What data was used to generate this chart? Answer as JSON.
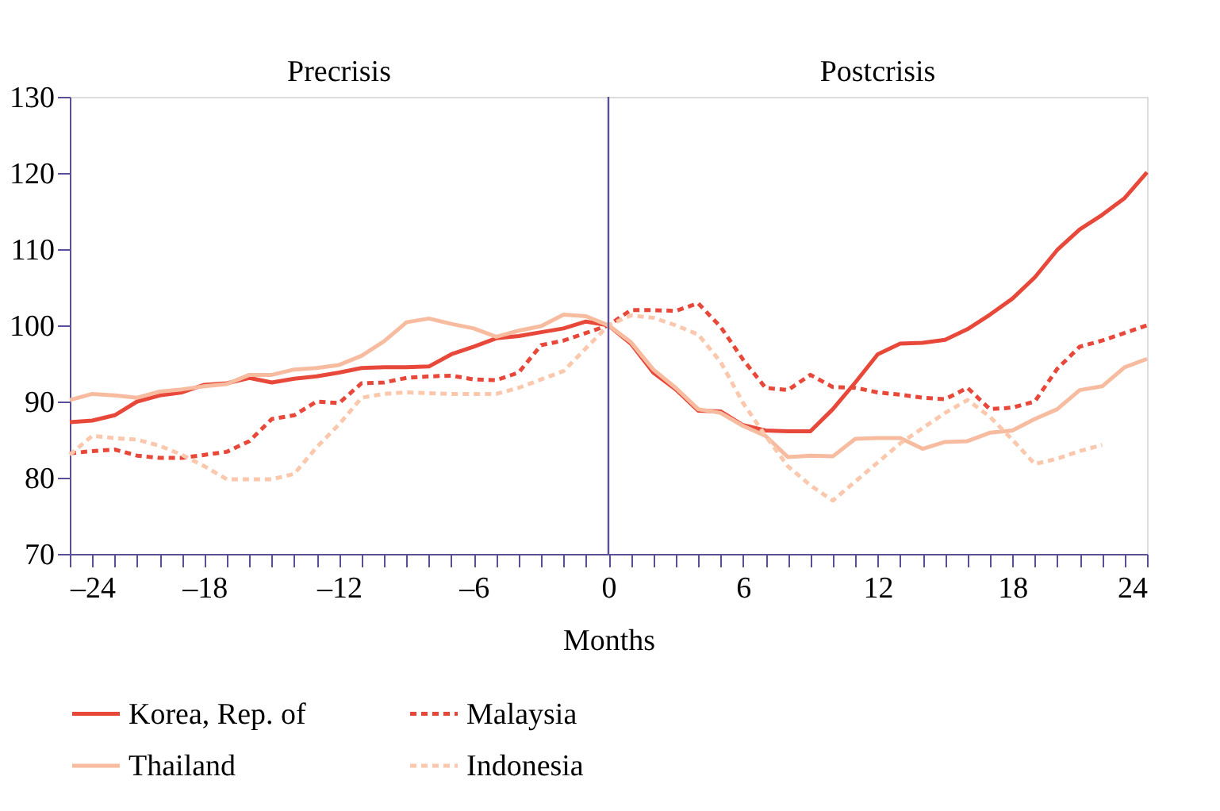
{
  "chart_data": {
    "type": "line",
    "xlabel": "Months",
    "annotations": [
      "Precrisis",
      "Postcrisis"
    ],
    "x": [
      -24,
      -23,
      -22,
      -21,
      -20,
      -19,
      -18,
      -17,
      -16,
      -15,
      -14,
      -13,
      -12,
      -11,
      -10,
      -9,
      -8,
      -7,
      -6,
      -5,
      -4,
      -3,
      -2,
      -1,
      0,
      1,
      2,
      3,
      4,
      5,
      6,
      7,
      8,
      9,
      10,
      11,
      12,
      13,
      14,
      15,
      16,
      17,
      18,
      19,
      20,
      21,
      22,
      23,
      24
    ],
    "xlim": [
      -24,
      24
    ],
    "xticks": [
      {
        "value": -24,
        "label": "–24"
      },
      {
        "value": -23,
        "label": null
      },
      {
        "value": -22,
        "label": null
      },
      {
        "value": -21,
        "label": null
      },
      {
        "value": -20,
        "label": null
      },
      {
        "value": -19,
        "label": null
      },
      {
        "value": -18,
        "label": "–18"
      },
      {
        "value": -17,
        "label": null
      },
      {
        "value": -16,
        "label": null
      },
      {
        "value": -15,
        "label": null
      },
      {
        "value": -14,
        "label": null
      },
      {
        "value": -13,
        "label": null
      },
      {
        "value": -12,
        "label": "–12"
      },
      {
        "value": -11,
        "label": null
      },
      {
        "value": -10,
        "label": null
      },
      {
        "value": -9,
        "label": null
      },
      {
        "value": -8,
        "label": null
      },
      {
        "value": -7,
        "label": null
      },
      {
        "value": -6,
        "label": "–6"
      },
      {
        "value": -5,
        "label": null
      },
      {
        "value": -4,
        "label": null
      },
      {
        "value": -3,
        "label": null
      },
      {
        "value": -2,
        "label": null
      },
      {
        "value": -1,
        "label": null
      },
      0,
      {
        "value": 1,
        "label": null
      },
      {
        "value": 2,
        "label": null
      },
      {
        "value": 3,
        "label": null
      },
      {
        "value": 4,
        "label": null
      },
      {
        "value": 5,
        "label": null
      },
      6,
      {
        "value": 7,
        "label": null
      },
      {
        "value": 8,
        "label": null
      },
      {
        "value": 9,
        "label": null
      },
      {
        "value": 10,
        "label": null
      },
      {
        "value": 11,
        "label": null
      },
      12,
      {
        "value": 13,
        "label": null
      },
      {
        "value": 14,
        "label": null
      },
      {
        "value": 15,
        "label": null
      },
      {
        "value": 16,
        "label": null
      },
      {
        "value": 17,
        "label": null
      },
      18,
      {
        "value": 19,
        "label": null
      },
      {
        "value": 20,
        "label": null
      },
      {
        "value": 21,
        "label": null
      },
      {
        "value": 22,
        "label": null
      },
      {
        "value": 23,
        "label": null
      },
      24
    ],
    "ylim": [
      70,
      130
    ],
    "yticks": [
      70,
      80,
      90,
      100,
      110,
      120,
      130
    ],
    "grid": false,
    "legend": "bottom",
    "ref_lines": [
      {
        "axis": "x",
        "value": 0,
        "color": "#5b4f96"
      }
    ],
    "series": [
      {
        "name": "Korea, Rep. of",
        "color": "#e8483a",
        "line_style": "solid",
        "values": [
          87.3,
          87.5,
          88.2,
          90,
          90.8,
          91.2,
          92.2,
          92.4,
          93.1,
          92.5,
          93,
          93.3,
          93.8,
          94.4,
          94.5,
          94.5,
          94.6,
          96.2,
          97.2,
          98.3,
          98.6,
          99.1,
          99.6,
          100.5,
          100,
          97.6,
          93.8,
          91.6,
          88.8,
          88.7,
          86.9,
          86.2,
          86.1,
          86.1,
          89,
          92.5,
          96.2,
          97.6,
          97.7,
          98.1,
          99.5,
          101.4,
          103.5,
          106.3,
          109.9,
          112.6,
          114.5,
          116.7,
          120.1
        ]
      },
      {
        "name": "Malaysia",
        "color": "#e8483a",
        "line_style": "dashed",
        "values": [
          83.2,
          83.5,
          83.7,
          82.9,
          82.6,
          82.6,
          83,
          83.4,
          84.8,
          87.7,
          88.2,
          90,
          89.8,
          92.4,
          92.5,
          93.1,
          93.3,
          93.4,
          92.9,
          92.8,
          93.8,
          97.4,
          98,
          99,
          100,
          102,
          102,
          101.9,
          102.9,
          99.8,
          95.5,
          91.8,
          91.5,
          93.5,
          91.9,
          91.8,
          91.2,
          90.9,
          90.5,
          90.3,
          91.8,
          89,
          89.2,
          90,
          94.3,
          97.2,
          98,
          99,
          100
        ]
      },
      {
        "name": "Thailand",
        "color": "#f7bca0",
        "line_style": "solid",
        "values": [
          90.2,
          91,
          90.8,
          90.5,
          91.3,
          91.6,
          92,
          92.3,
          93.5,
          93.5,
          94.2,
          94.4,
          94.8,
          96,
          97.9,
          100.4,
          100.9,
          100.2,
          99.6,
          98.5,
          99.3,
          99.9,
          101.4,
          101.2,
          100,
          97.8,
          94.2,
          91.8,
          89,
          88.5,
          86.8,
          85.5,
          82.7,
          82.9,
          82.8,
          85.1,
          85.2,
          85.2,
          83.8,
          84.7,
          84.8,
          85.9,
          86.2,
          87.7,
          89,
          91.5,
          92,
          94.5,
          95.6
        ]
      },
      {
        "name": "Indonesia",
        "color": "#fbc8ae",
        "line_style": "dashed",
        "values": [
          83,
          85.5,
          85.2,
          85,
          84.2,
          83,
          81.5,
          79.8,
          79.8,
          79.8,
          80.5,
          84,
          87,
          90.5,
          91,
          91.2,
          91.1,
          91,
          91,
          91,
          91.8,
          92.9,
          94,
          97,
          100,
          101.3,
          101,
          100,
          98.8,
          95.2,
          89.8,
          85.5,
          81.5,
          79,
          77,
          79.5,
          82,
          84.5,
          86.5,
          88.5,
          90.2,
          88,
          85,
          81.8,
          82.5,
          83.5,
          84.3,
          null,
          null
        ]
      }
    ]
  }
}
